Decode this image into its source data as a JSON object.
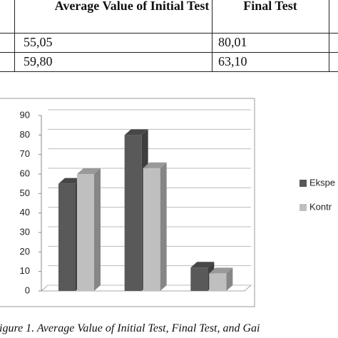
{
  "table": {
    "header": [
      "Average Value of Initial Test",
      "Final Test"
    ],
    "rows": [
      [
        "55,05",
        "80,01"
      ],
      [
        "59,80",
        "63,10"
      ]
    ]
  },
  "chart_data": {
    "type": "bar",
    "categories": [
      null,
      null,
      null
    ],
    "series": [
      {
        "name": "Ekspe",
        "color": "#595959",
        "values": [
          55,
          80,
          12
        ]
      },
      {
        "name": "Kontr",
        "color": "#bfbfbf",
        "values": [
          60,
          63,
          9
        ]
      }
    ],
    "ylim": [
      0,
      90
    ],
    "yticks": [
      0,
      10,
      20,
      30,
      40,
      50,
      60,
      70,
      80,
      90
    ],
    "grid": true,
    "legend": "right"
  },
  "caption": "igure 1. Average Value of Initial Test, Final Test, and Gai"
}
